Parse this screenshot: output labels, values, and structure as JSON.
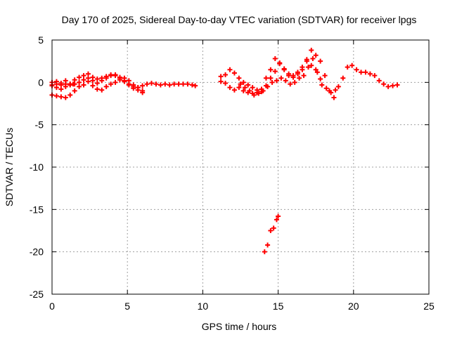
{
  "chart_data": {
    "type": "scatter",
    "title": "Day 170 of 2025, Sidereal Day-to-day VTEC variation (SDTVAR) for receiver lpgs",
    "xlabel": "GPS time / hours",
    "ylabel": "SDTVAR / TECUs",
    "xlim": [
      0,
      25
    ],
    "ylim": [
      -25,
      5
    ],
    "xticks": [
      0,
      5,
      10,
      15,
      20,
      25
    ],
    "yticks": [
      -25,
      -20,
      -15,
      -10,
      -5,
      0,
      5
    ],
    "grid": true,
    "legend": "none",
    "marker": "+",
    "colors": {
      "series": "#ff0000",
      "grid": "#a0a0a0",
      "axis": "#000000"
    },
    "series": [
      {
        "name": "lpgs SDTVAR",
        "x": [
          0.0,
          0.3,
          0.6,
          0.9,
          1.2,
          1.5,
          1.8,
          2.1,
          2.4,
          2.7,
          3.0,
          3.3,
          3.6,
          3.9,
          4.2,
          4.5,
          4.8,
          5.1,
          5.4,
          5.7,
          6.0,
          6.3,
          6.6,
          6.9,
          7.2,
          7.5,
          7.8,
          8.1,
          8.4,
          8.7,
          9.0,
          9.3,
          9.5,
          0.0,
          0.3,
          0.6,
          0.9,
          1.2,
          1.5,
          1.8,
          2.1,
          2.4,
          2.7,
          3.0,
          3.3,
          3.6,
          3.9,
          4.2,
          4.5,
          4.8,
          5.1,
          5.4,
          5.7,
          6.0,
          0.0,
          0.3,
          0.6,
          0.9,
          1.2,
          1.5,
          1.8,
          2.1,
          2.4,
          2.7,
          3.0,
          3.3,
          3.6,
          3.9,
          4.2,
          4.5,
          4.8,
          5.1,
          5.4,
          5.7,
          6.0,
          0.0,
          0.3,
          0.6,
          0.9,
          1.2,
          1.4,
          11.2,
          11.5,
          11.8,
          12.1,
          12.4,
          12.7,
          13.0,
          13.3,
          13.6,
          13.9,
          14.2,
          14.5,
          14.8,
          15.1,
          15.4,
          15.7,
          16.0,
          16.3,
          16.6,
          16.9,
          17.2,
          17.5,
          17.8,
          18.1,
          18.4,
          18.7,
          19.0,
          19.3,
          19.6,
          19.9,
          20.2,
          20.5,
          20.8,
          21.1,
          21.4,
          21.7,
          22.0,
          22.3,
          22.6,
          22.9,
          11.2,
          11.5,
          11.8,
          12.1,
          12.4,
          12.7,
          13.0,
          13.3,
          13.6,
          13.9,
          14.2,
          14.5,
          14.8,
          15.1,
          15.4,
          15.7,
          16.0,
          16.3,
          16.6,
          16.9,
          17.2,
          17.5,
          17.8,
          12.5,
          12.8,
          13.1,
          13.4,
          13.7,
          14.0,
          14.3,
          14.6,
          14.9,
          15.2,
          15.5,
          15.8,
          16.1,
          16.4,
          16.7,
          17.0,
          17.3,
          17.6,
          17.9,
          18.2,
          18.5,
          18.8,
          14.1,
          14.3,
          14.5,
          14.7,
          14.9,
          15.0
        ],
        "y": [
          -0.3,
          0.1,
          -0.1,
          0.2,
          -0.2,
          0.3,
          0.6,
          0.8,
          1.0,
          0.6,
          0.4,
          0.5,
          0.7,
          0.9,
          0.8,
          0.5,
          0.1,
          -0.2,
          -0.5,
          -0.6,
          -0.4,
          -0.2,
          -0.1,
          -0.2,
          -0.3,
          -0.2,
          -0.3,
          -0.2,
          -0.2,
          -0.2,
          -0.2,
          -0.3,
          -0.4,
          -1.5,
          -1.6,
          -1.7,
          -1.8,
          -1.5,
          -1.0,
          -0.5,
          -0.3,
          0.1,
          -0.4,
          -0.8,
          -0.9,
          -0.5,
          -0.2,
          0.0,
          0.3,
          0.5,
          0.2,
          -0.3,
          -0.6,
          -1.2,
          -0.4,
          -0.6,
          -0.8,
          -0.5,
          -0.3,
          -0.2,
          0.0,
          0.3,
          0.5,
          0.2,
          -0.1,
          0.2,
          0.5,
          0.8,
          0.9,
          0.6,
          0.2,
          -0.3,
          -0.7,
          -0.9,
          -1.0,
          0.0,
          -0.2,
          -0.3,
          -0.2,
          -0.2,
          -0.2,
          0.7,
          0.9,
          1.5,
          1.1,
          0.5,
          0.0,
          -0.3,
          -0.6,
          -0.9,
          -1.1,
          -0.4,
          0.5,
          1.3,
          2.3,
          1.6,
          1.0,
          0.8,
          1.2,
          1.5,
          2.7,
          3.8,
          3.2,
          2.5,
          0.8,
          -1.0,
          -1.8,
          -0.5,
          0.5,
          1.8,
          2.0,
          1.5,
          1.2,
          1.2,
          1.0,
          0.8,
          0.2,
          -0.2,
          -0.5,
          -0.4,
          -0.3,
          0.1,
          -0.1,
          -0.6,
          -0.9,
          -0.6,
          -1.0,
          -1.2,
          -1.3,
          -1.2,
          -0.8,
          0.5,
          1.5,
          2.8,
          2.2,
          1.5,
          0.8,
          0.6,
          1.0,
          1.8,
          2.5,
          2.0,
          1.5,
          0.4,
          -0.2,
          -0.6,
          -1.0,
          -1.5,
          -1.3,
          -1.0,
          -0.5,
          0.0,
          0.2,
          0.5,
          0.2,
          -0.2,
          0.0,
          0.5,
          0.8,
          1.8,
          2.8,
          1.2,
          -0.3,
          -0.7,
          -1.2,
          -0.9,
          -20.0,
          -19.2,
          -17.5,
          -17.2,
          -16.2,
          -15.8
        ]
      }
    ]
  }
}
